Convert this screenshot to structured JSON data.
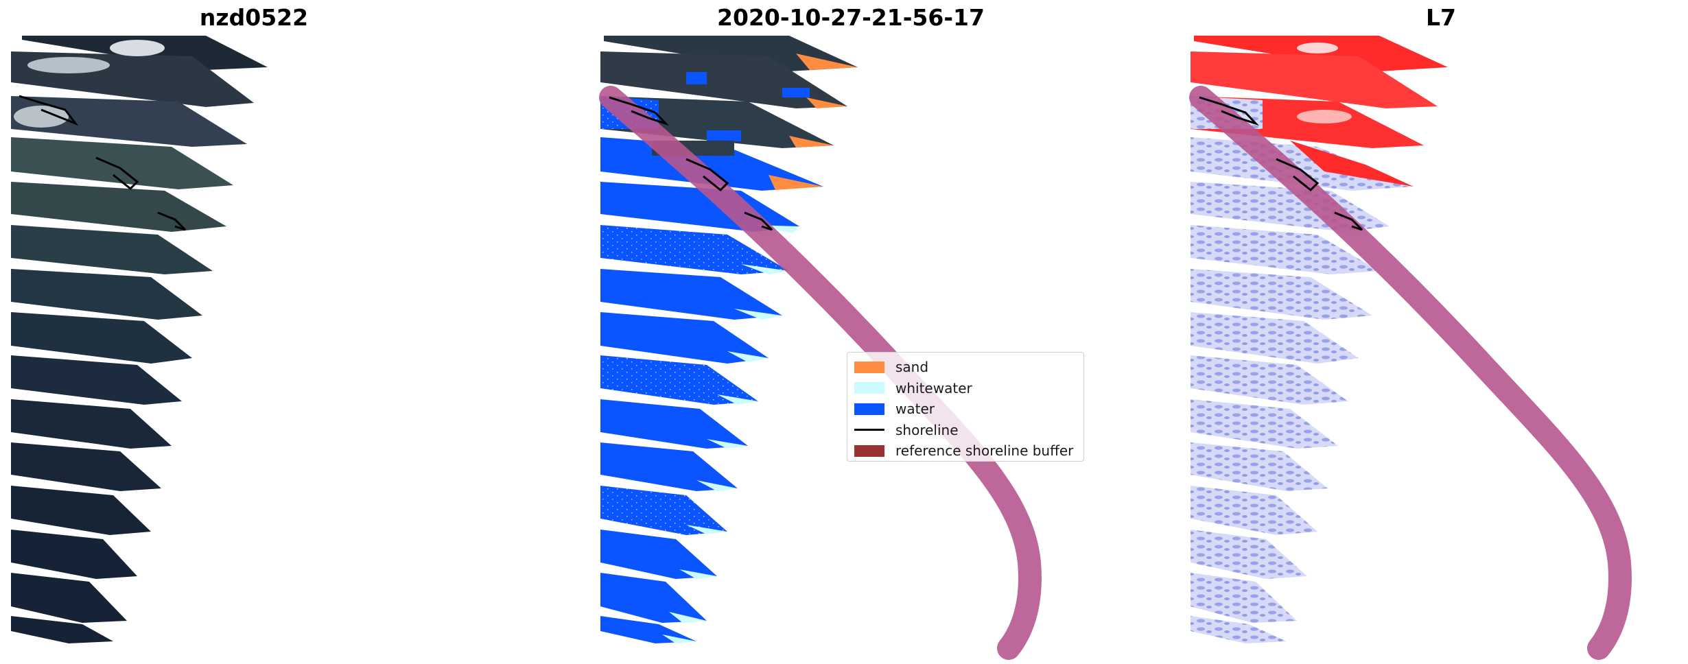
{
  "panels": [
    {
      "title": "nzd0522",
      "kind": "rgb-image"
    },
    {
      "title": "2020-10-27-21-56-17",
      "kind": "classified-image"
    },
    {
      "title": "L7",
      "kind": "mndwi-image"
    }
  ],
  "legend": [
    {
      "label": "sand",
      "color": "#ff8c40",
      "shape": "patch"
    },
    {
      "label": "whitewater",
      "color": "#ccfcff",
      "shape": "patch"
    },
    {
      "label": "water",
      "color": "#0a55ff",
      "shape": "patch"
    },
    {
      "label": "shoreline",
      "color": "#000000",
      "shape": "line"
    },
    {
      "label": "reference shoreline buffer",
      "color": "#993333",
      "shape": "patch"
    }
  ],
  "colors": {
    "buffer": "#b7578f",
    "shoreline": "#000000",
    "rgb_water_dark": "#162236",
    "rgb_water_mid": "#2a3e48",
    "cloud": "#c8ced6",
    "ndwi_red": "#ff2a2a",
    "ndwi_blue": "#b8bff2"
  }
}
